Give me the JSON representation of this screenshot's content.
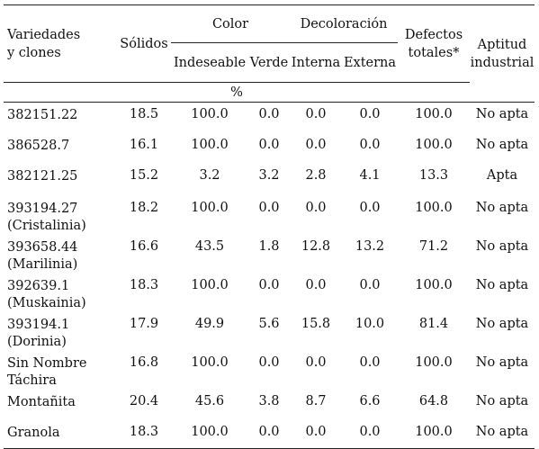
{
  "headers": {
    "variety": [
      "Variedades",
      "y clones"
    ],
    "solids": "Sólidos",
    "color": "Color",
    "color_sub": [
      "Indeseable",
      "Verde"
    ],
    "decolor": "Decoloración",
    "decolor_sub": [
      "Interna",
      "Externa"
    ],
    "defects": [
      "Defectos",
      "totales*"
    ],
    "aptitude": [
      "Aptitud",
      "industrial"
    ],
    "unit": "%"
  },
  "rows": [
    {
      "name": [
        "382151.22"
      ],
      "solidos": "18.5",
      "indeseable": "100.0",
      "verde": "0.0",
      "interna": "0.0",
      "externa": "0.0",
      "defectos": "100.0",
      "aptitud": "No apta"
    },
    {
      "name": [
        "386528.7"
      ],
      "solidos": "16.1",
      "indeseable": "100.0",
      "verde": "0.0",
      "interna": "0.0",
      "externa": "0.0",
      "defectos": "100.0",
      "aptitud": "No apta"
    },
    {
      "name": [
        "382121.25"
      ],
      "solidos": "15.2",
      "indeseable": "3.2",
      "verde": "3.2",
      "interna": "2.8",
      "externa": "4.1",
      "defectos": "13.3",
      "aptitud": "Apta"
    },
    {
      "name": [
        "393194.27",
        "(Cristalinia)"
      ],
      "solidos": "18.2",
      "indeseable": "100.0",
      "verde": "0.0",
      "interna": "0.0",
      "externa": "0.0",
      "defectos": "100.0",
      "aptitud": "No apta"
    },
    {
      "name": [
        "393658.44",
        "(Marilinia)"
      ],
      "solidos": "16.6",
      "indeseable": "43.5",
      "verde": "1.8",
      "interna": "12.8",
      "externa": "13.2",
      "defectos": "71.2",
      "aptitud": "No apta"
    },
    {
      "name": [
        "392639.1",
        "(Muskainia)"
      ],
      "solidos": "18.3",
      "indeseable": "100.0",
      "verde": "0.0",
      "interna": "0.0",
      "externa": "0.0",
      "defectos": "100.0",
      "aptitud": "No apta"
    },
    {
      "name": [
        "393194.1",
        "(Dorinia)"
      ],
      "solidos": "17.9",
      "indeseable": "49.9",
      "verde": "5.6",
      "interna": "15.8",
      "externa": "10.0",
      "defectos": "81.4",
      "aptitud": "No apta"
    },
    {
      "name": [
        "Sin Nombre",
        "Táchira"
      ],
      "solidos": "16.8",
      "indeseable": "100.0",
      "verde": "0.0",
      "interna": "0.0",
      "externa": "0.0",
      "defectos": "100.0",
      "aptitud": "No apta"
    },
    {
      "name": [
        "Montañita"
      ],
      "solidos": "20.4",
      "indeseable": "45.6",
      "verde": "3.8",
      "interna": "8.7",
      "externa": "6.6",
      "defectos": "64.8",
      "aptitud": "No apta"
    },
    {
      "name": [
        "Granola"
      ],
      "solidos": "18.3",
      "indeseable": "100.0",
      "verde": "0.0",
      "interna": "0.0",
      "externa": "0.0",
      "defectos": "100.0",
      "aptitud": "No apta"
    }
  ]
}
